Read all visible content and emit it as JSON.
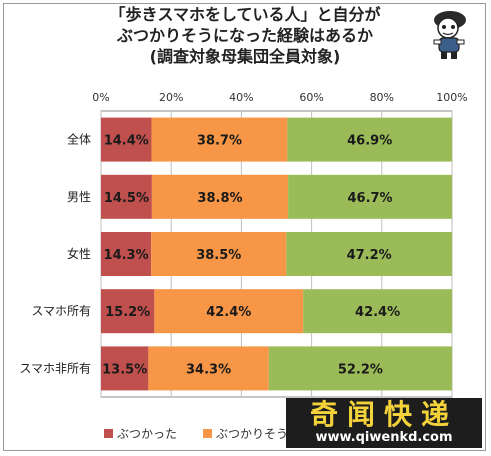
{
  "chart_data": {
    "type": "bar",
    "orientation": "horizontal",
    "stacked": true,
    "title_lines": [
      "「歩きスマホをしている人」と自分が",
      "ぶつかりそうになった経験はあるか",
      "(調査対象母集団全員対象)"
    ],
    "categories": [
      "全体",
      "男性",
      "女性",
      "スマホ所有",
      "スマホ非所有"
    ],
    "x_ticks": [
      "0%",
      "20%",
      "40%",
      "60%",
      "80%",
      "100%"
    ],
    "xlim": [
      0,
      100
    ],
    "grid": true,
    "legend_position": "bottom",
    "series": [
      {
        "name": "ぶつかった",
        "color": "#c0504d",
        "values": [
          14.4,
          14.5,
          14.3,
          15.2,
          13.5
        ],
        "labels": [
          "14.4%",
          "14.5%",
          "14.3%",
          "15.2%",
          "13.5%"
        ]
      },
      {
        "name": "ぶつかりそうに",
        "color": "#f79646",
        "values": [
          38.7,
          38.8,
          38.5,
          42.4,
          34.3
        ],
        "labels": [
          "38.7%",
          "38.8%",
          "38.5%",
          "42.4%",
          "34.3%"
        ]
      },
      {
        "name": "",
        "color": "#9bbb59",
        "values": [
          46.9,
          46.7,
          47.2,
          42.4,
          52.2
        ],
        "labels": [
          "46.9%",
          "46.7%",
          "47.2%",
          "42.4%",
          "52.2%"
        ]
      }
    ]
  },
  "watermark": {
    "top": "奇闻快递",
    "bottom": "www.qiwenkd.com"
  },
  "icons": {
    "mascot": "cartoon-character-icon"
  }
}
